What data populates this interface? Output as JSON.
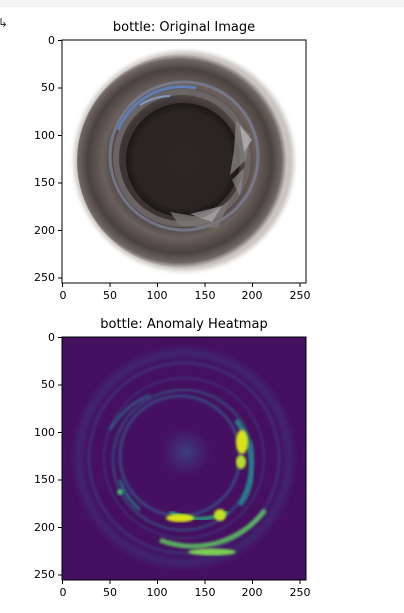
{
  "output_indicator": "↳",
  "chart_data": [
    {
      "type": "image",
      "title": "bottle: Original Image",
      "xlim": [
        0,
        256
      ],
      "ylim": [
        256,
        0
      ],
      "xticks": [
        0,
        50,
        100,
        150,
        200,
        250
      ],
      "yticks": [
        0,
        50,
        100,
        150,
        200,
        250
      ],
      "image_description": "top-down photo of bottle mouth with broken glass near right and bottom-right rim"
    },
    {
      "type": "heatmap",
      "title": "bottle: Anomaly Heatmap",
      "colormap": "viridis",
      "xlim": [
        0,
        256
      ],
      "ylim": [
        256,
        0
      ],
      "xticks": [
        0,
        50,
        100,
        150,
        200,
        250
      ],
      "yticks": [
        0,
        50,
        100,
        150,
        200,
        250
      ],
      "hotspots": [
        {
          "x": 192,
          "y": 108,
          "intensity": 1.0
        },
        {
          "x": 190,
          "y": 130,
          "intensity": 0.9
        },
        {
          "x": 123,
          "y": 188,
          "intensity": 0.85
        },
        {
          "x": 165,
          "y": 186,
          "intensity": 0.8
        },
        {
          "x": 160,
          "y": 230,
          "intensity": 0.6
        }
      ]
    }
  ]
}
